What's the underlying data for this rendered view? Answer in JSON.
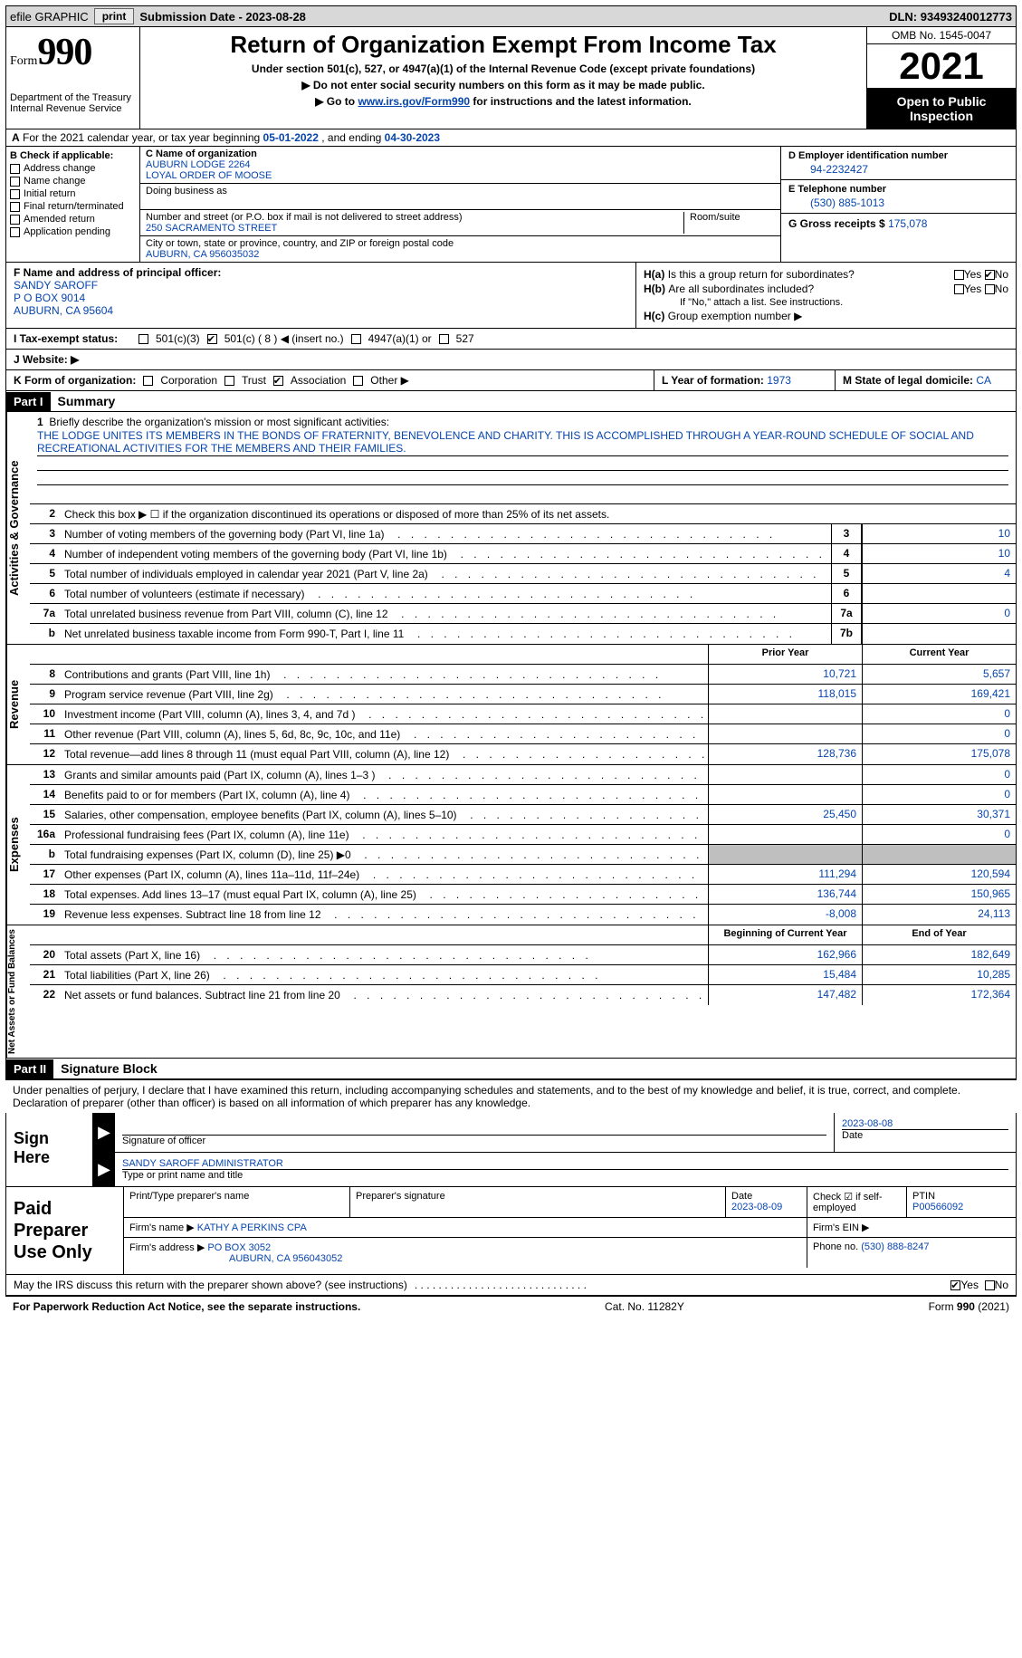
{
  "topbar": {
    "efile": "efile GRAPHIC",
    "print": "print",
    "subdate_lbl": "Submission Date - ",
    "subdate": "2023-08-28",
    "dln_lbl": "DLN: ",
    "dln": "93493240012773"
  },
  "header": {
    "form_word": "Form",
    "form_num": "990",
    "dept": "Department of the Treasury\nInternal Revenue Service",
    "title": "Return of Organization Exempt From Income Tax",
    "sub1": "Under section 501(c), 527, or 4947(a)(1) of the Internal Revenue Code (except private foundations)",
    "sub2a": "▶ Do not enter social security numbers on this form as it may be made public.",
    "sub2b_pre": "▶ Go to ",
    "sub2b_link": "www.irs.gov/Form990",
    "sub2b_post": " for instructions and the latest information.",
    "omb": "OMB No. 1545-0047",
    "year": "2021",
    "openpub": "Open to Public Inspection"
  },
  "rowA": {
    "a_lbl": "A",
    "text_pre": " For the 2021 calendar year, or tax year beginning ",
    "begin": "05-01-2022",
    "mid": "   , and ending ",
    "end": "04-30-2023"
  },
  "colB": {
    "hdr": "B Check if applicable:",
    "items": [
      "Address change",
      "Name change",
      "Initial return",
      "Final return/terminated",
      "Amended return",
      "Application pending"
    ]
  },
  "colC": {
    "name_lbl": "C Name of organization",
    "name1": "AUBURN LODGE 2264",
    "name2": "LOYAL ORDER OF MOOSE",
    "dba_lbl": "Doing business as",
    "street_lbl": "Number and street (or P.O. box if mail is not delivered to street address)",
    "room_lbl": "Room/suite",
    "street": "250 SACRAMENTO STREET",
    "city_lbl": "City or town, state or province, country, and ZIP or foreign postal code",
    "city": "AUBURN, CA  956035032"
  },
  "colD": {
    "d_lbl": "D Employer identification number",
    "ein": "94-2232427",
    "e_lbl": "E Telephone number",
    "phone": "(530) 885-1013",
    "g_lbl": "G Gross receipts $ ",
    "gross": "175,078"
  },
  "rowF": {
    "f_lbl": "F  Name and address of principal officer:",
    "name": "SANDY SAROFF",
    "addr1": "P O BOX 9014",
    "addr2": "AUBURN, CA   95604"
  },
  "rowH": {
    "ha_lbl": "H(a)",
    "ha_q": "Is this a group return for subordinates?",
    "hb_lbl": "H(b)",
    "hb_q": "Are all subordinates included?",
    "hb_note": "If \"No,\" attach a list. See instructions.",
    "hc_lbl": "H(c)",
    "hc_q": "Group exemption number ▶",
    "yes": "Yes",
    "no": "No"
  },
  "rowI": {
    "lbl": "I  Tax-exempt status:",
    "o1": "501(c)(3)",
    "o2": "501(c) ( 8 ) ◀ (insert no.)",
    "o3": "4947(a)(1) or",
    "o4": "527"
  },
  "rowJ": {
    "lbl": "J  Website: ▶"
  },
  "rowK": {
    "lbl": "K Form of organization:",
    "o1": "Corporation",
    "o2": "Trust",
    "o3": "Association",
    "o4": "Other ▶"
  },
  "rowL": {
    "lbl": "L Year of formation: ",
    "val": "1973"
  },
  "rowM": {
    "lbl": "M State of legal domicile: ",
    "val": "CA"
  },
  "part1": {
    "hdr": "Part I",
    "title": "Summary"
  },
  "mission": {
    "num": "1",
    "lbl": "Briefly describe the organization's mission or most significant activities:",
    "text": "THE LODGE UNITES ITS MEMBERS IN THE BONDS OF FRATERNITY, BENEVOLENCE AND CHARITY. THIS IS ACCOMPLISHED THROUGH A YEAR-ROUND SCHEDULE OF SOCIAL AND RECREATIONAL ACTIVITIES FOR THE MEMBERS AND THEIR FAMILIES."
  },
  "line2": {
    "num": "2",
    "text": "Check this box ▶ ☐ if the organization discontinued its operations or disposed of more than 25% of its net assets."
  },
  "lines_single": [
    {
      "num": "3",
      "desc": "Number of voting members of the governing body (Part VI, line 1a)",
      "box": "3",
      "val": "10"
    },
    {
      "num": "4",
      "desc": "Number of independent voting members of the governing body (Part VI, line 1b)",
      "box": "4",
      "val": "10"
    },
    {
      "num": "5",
      "desc": "Total number of individuals employed in calendar year 2021 (Part V, line 2a)",
      "box": "5",
      "val": "4"
    },
    {
      "num": "6",
      "desc": "Total number of volunteers (estimate if necessary)",
      "box": "6",
      "val": ""
    },
    {
      "num": "7a",
      "desc": "Total unrelated business revenue from Part VIII, column (C), line 12",
      "box": "7a",
      "val": "0"
    },
    {
      "num": "b",
      "desc": "Net unrelated business taxable income from Form 990-T, Part I, line 11",
      "box": "7b",
      "val": ""
    }
  ],
  "colhdrs": {
    "prior": "Prior Year",
    "current": "Current Year",
    "boy": "Beginning of Current Year",
    "eoy": "End of Year"
  },
  "revenue": [
    {
      "num": "8",
      "desc": "Contributions and grants (Part VIII, line 1h)",
      "a": "10,721",
      "b": "5,657"
    },
    {
      "num": "9",
      "desc": "Program service revenue (Part VIII, line 2g)",
      "a": "118,015",
      "b": "169,421"
    },
    {
      "num": "10",
      "desc": "Investment income (Part VIII, column (A), lines 3, 4, and 7d )",
      "a": "",
      "b": "0"
    },
    {
      "num": "11",
      "desc": "Other revenue (Part VIII, column (A), lines 5, 6d, 8c, 9c, 10c, and 11e)",
      "a": "",
      "b": "0"
    },
    {
      "num": "12",
      "desc": "Total revenue—add lines 8 through 11 (must equal Part VIII, column (A), line 12)",
      "a": "128,736",
      "b": "175,078"
    }
  ],
  "expenses": [
    {
      "num": "13",
      "desc": "Grants and similar amounts paid (Part IX, column (A), lines 1–3 )",
      "a": "",
      "b": "0"
    },
    {
      "num": "14",
      "desc": "Benefits paid to or for members (Part IX, column (A), line 4)",
      "a": "",
      "b": "0"
    },
    {
      "num": "15",
      "desc": "Salaries, other compensation, employee benefits (Part IX, column (A), lines 5–10)",
      "a": "25,450",
      "b": "30,371"
    },
    {
      "num": "16a",
      "desc": "Professional fundraising fees (Part IX, column (A), line 11e)",
      "a": "",
      "b": "0"
    },
    {
      "num": "b",
      "desc": "Total fundraising expenses (Part IX, column (D), line 25) ▶0",
      "a": "GREY",
      "b": "GREY"
    },
    {
      "num": "17",
      "desc": "Other expenses (Part IX, column (A), lines 11a–11d, 11f–24e)",
      "a": "111,294",
      "b": "120,594"
    },
    {
      "num": "18",
      "desc": "Total expenses. Add lines 13–17 (must equal Part IX, column (A), line 25)",
      "a": "136,744",
      "b": "150,965"
    },
    {
      "num": "19",
      "desc": "Revenue less expenses. Subtract line 18 from line 12",
      "a": "-8,008",
      "b": "24,113"
    }
  ],
  "netassets": [
    {
      "num": "20",
      "desc": "Total assets (Part X, line 16)",
      "a": "162,966",
      "b": "182,649"
    },
    {
      "num": "21",
      "desc": "Total liabilities (Part X, line 26)",
      "a": "15,484",
      "b": "10,285"
    },
    {
      "num": "22",
      "desc": "Net assets or fund balances. Subtract line 21 from line 20",
      "a": "147,482",
      "b": "172,364"
    }
  ],
  "vtabs": {
    "gov": "Activities & Governance",
    "rev": "Revenue",
    "exp": "Expenses",
    "net": "Net Assets or Fund Balances"
  },
  "part2": {
    "hdr": "Part II",
    "title": "Signature Block"
  },
  "sig_intro": "Under penalties of perjury, I declare that I have examined this return, including accompanying schedules and statements, and to the best of my knowledge and belief, it is true, correct, and complete. Declaration of preparer (other than officer) is based on all information of which preparer has any knowledge.",
  "sign": {
    "here": "Sign Here",
    "sig_lbl": "Signature of officer",
    "date": "2023-08-08",
    "date_lbl": "Date",
    "name": "SANDY SAROFF  ADMINISTRATOR",
    "name_lbl": "Type or print name and title"
  },
  "paid": {
    "hdr": "Paid Preparer Use Only",
    "print_lbl": "Print/Type preparer's name",
    "sig_lbl": "Preparer's signature",
    "date_lbl": "Date",
    "date": "2023-08-09",
    "check_lbl": "Check ☑ if self-employed",
    "ptin_lbl": "PTIN",
    "ptin": "P00566092",
    "firm_name_lbl": "Firm's name      ▶ ",
    "firm_name": "KATHY A PERKINS CPA",
    "firm_ein_lbl": "Firm's EIN ▶",
    "firm_addr_lbl": "Firm's address ▶ ",
    "firm_addr1": "PO BOX 3052",
    "firm_addr2": "AUBURN, CA  956043052",
    "phone_lbl": "Phone no. ",
    "phone": "(530) 888-8247"
  },
  "bottom": {
    "q": "May the IRS discuss this return with the preparer shown above? (see instructions)",
    "yes": "Yes",
    "no": "No"
  },
  "footer": {
    "left": "For Paperwork Reduction Act Notice, see the separate instructions.",
    "mid": "Cat. No. 11282Y",
    "right": "Form 990 (2021)"
  },
  "dots": ".   .   .   .   .   .   .   .   .   .   .   .   .   .   .   .   .   .   .   .   .   .   .   .   .   .   .   .   ."
}
